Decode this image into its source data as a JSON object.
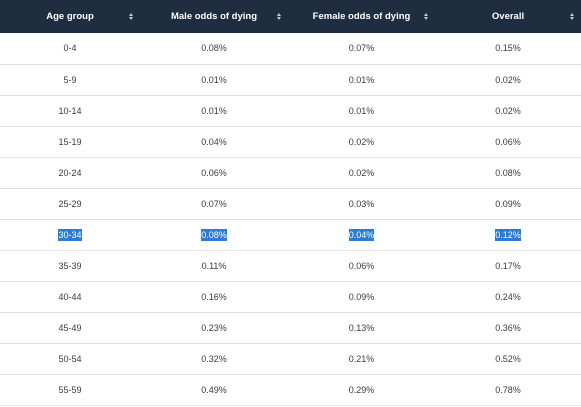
{
  "table": {
    "headers": [
      "Age group",
      "Male odds of dying",
      "Female odds of dying",
      "Overall"
    ],
    "sort_icon": "sort-arrows-icon",
    "selected_row_index": 6,
    "rows": [
      [
        "0-4",
        "0.08%",
        "0.07%",
        "0.15%"
      ],
      [
        "5-9",
        "0.01%",
        "0.01%",
        "0.02%"
      ],
      [
        "10-14",
        "0.01%",
        "0.01%",
        "0.02%"
      ],
      [
        "15-19",
        "0.04%",
        "0.02%",
        "0.06%"
      ],
      [
        "20-24",
        "0.06%",
        "0.02%",
        "0.08%"
      ],
      [
        "25-29",
        "0.07%",
        "0.03%",
        "0.09%"
      ],
      [
        "30-34",
        "0.08%",
        "0.04%",
        "0.12%"
      ],
      [
        "35-39",
        "0.11%",
        "0.06%",
        "0.17%"
      ],
      [
        "40-44",
        "0.16%",
        "0.09%",
        "0.24%"
      ],
      [
        "45-49",
        "0.23%",
        "0.13%",
        "0.36%"
      ],
      [
        "50-54",
        "0.32%",
        "0.21%",
        "0.52%"
      ],
      [
        "55-59",
        "0.49%",
        "0.29%",
        "0.78%"
      ]
    ]
  },
  "colors": {
    "header_bg": "#1e2d3f",
    "header_text": "#ffffff",
    "selection": "#2b7bd8",
    "row_border": "#e2e2e2"
  }
}
